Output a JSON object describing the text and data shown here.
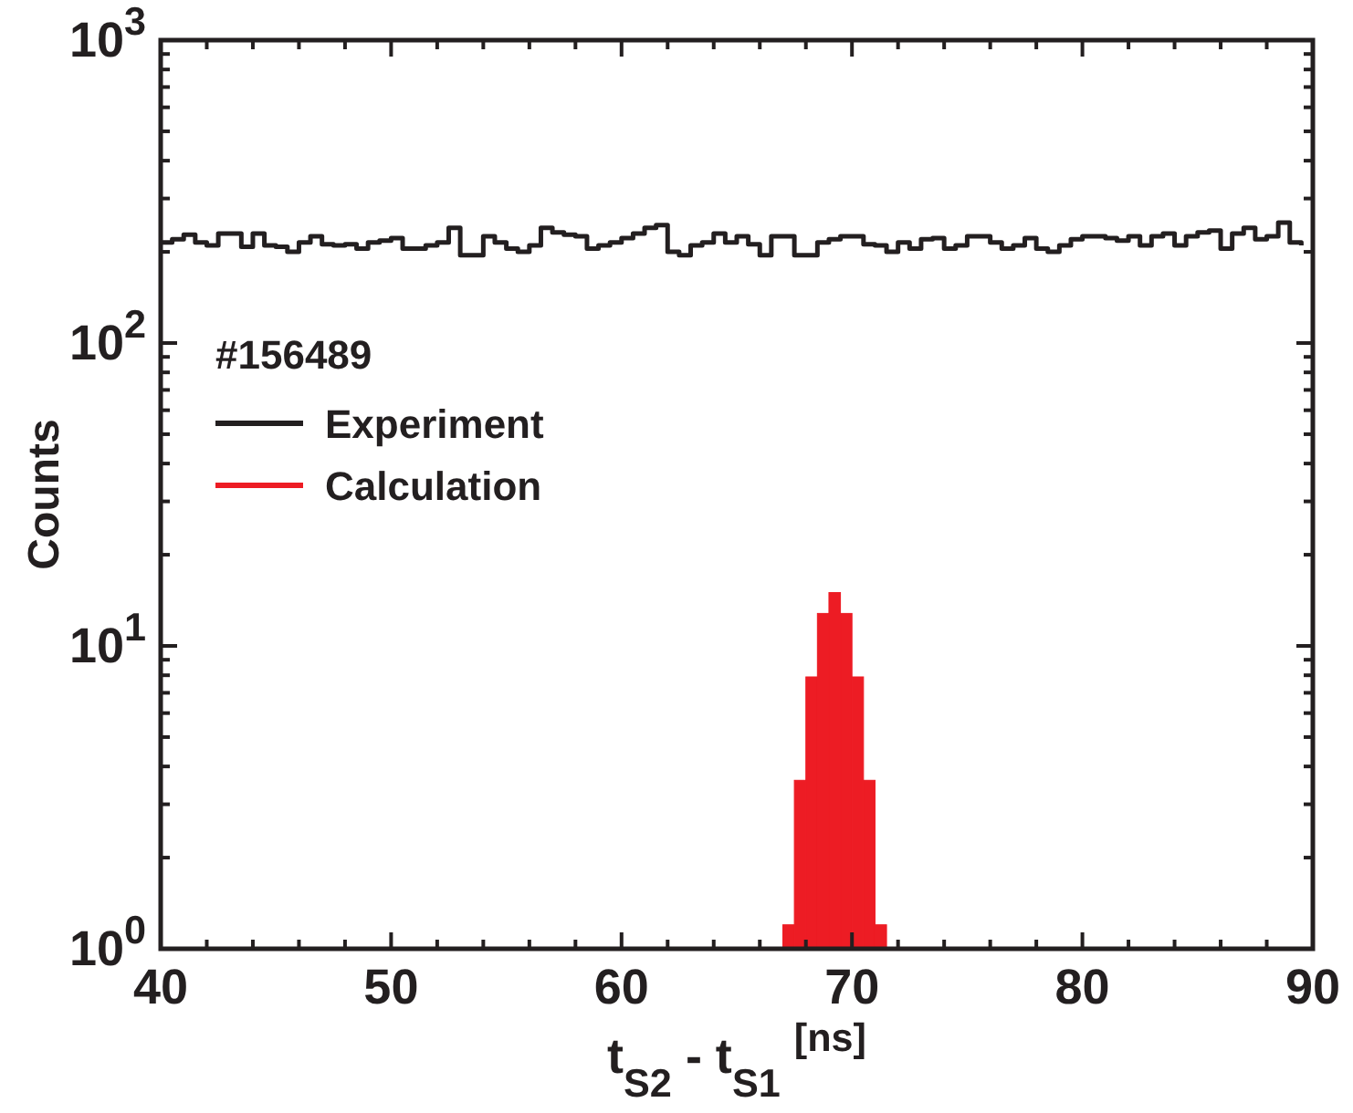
{
  "chart_data": {
    "type": "histogram",
    "xlabel": "t$_{S2}$ - t$_{S1}$ $^{[ns]}$",
    "ylabel": "Counts",
    "legend_title": "#156489",
    "legend": "top left",
    "log": "y",
    "bins": [
      40,
      40.5,
      41,
      41.5,
      42,
      42.5,
      43,
      43.5,
      44,
      44.5,
      45,
      45.5,
      46,
      46.5,
      47,
      47.5,
      48,
      48.5,
      49,
      49.5,
      50,
      50.5,
      51,
      51.5,
      52,
      52.5,
      53,
      53.5,
      54,
      54.5,
      55,
      55.5,
      56,
      56.5,
      57,
      57.5,
      58,
      58.5,
      59,
      59.5,
      60,
      60.5,
      61,
      61.5,
      62,
      62.5,
      63,
      63.5,
      64,
      64.5,
      65,
      65.5,
      66,
      66.5,
      67,
      67.5,
      68,
      68.5,
      69,
      69.5,
      70,
      70.5,
      71,
      71.5,
      72,
      72.5,
      73,
      73.5,
      74,
      74.5,
      75,
      75.5,
      76,
      76.5,
      77,
      77.5,
      78,
      78.5,
      79,
      79.5,
      80,
      80.5,
      81,
      81.5,
      82,
      82.5,
      83,
      83.5,
      84,
      84.5,
      85,
      85.5,
      86,
      86.5,
      87,
      87.5,
      88,
      88.5,
      89,
      89.5,
      90
    ],
    "series": [
      {
        "name": "Experiment",
        "type": "step",
        "color": "#231f20",
        "x": [
          40,
          40.5,
          41,
          41.5,
          42,
          42.5,
          43,
          43.5,
          44,
          44.5,
          45,
          45.5,
          46,
          46.5,
          47,
          47.5,
          48,
          48.5,
          49,
          49.5,
          50,
          50.5,
          51,
          51.5,
          52,
          52.5,
          53,
          53.5,
          54,
          54.5,
          55,
          55.5,
          56,
          56.5,
          57,
          57.5,
          58,
          58.5,
          59,
          59.5,
          60,
          60.5,
          61,
          61.5,
          62,
          62.5,
          63,
          63.5,
          64,
          64.5,
          65,
          65.5,
          66,
          66.5,
          67,
          67.5,
          68,
          68.5,
          69,
          69.5,
          70,
          70.5,
          71,
          71.5,
          72,
          72.5,
          73,
          73.5,
          74,
          74.5,
          75,
          75.5,
          76,
          76.5,
          77,
          77.5,
          78,
          78.5,
          79,
          79.5,
          80,
          80.5,
          81,
          81.5,
          82,
          82.5,
          83,
          83.5,
          84,
          84.5,
          85,
          85.5,
          86,
          86.5,
          87,
          87.5,
          88,
          88.5,
          89,
          89.5
        ],
        "values": [
          215,
          220,
          228,
          215,
          210,
          230,
          230,
          208,
          230,
          210,
          208,
          200,
          215,
          225,
          212,
          210,
          212,
          205,
          215,
          218,
          222,
          205,
          205,
          210,
          215,
          240,
          195,
          195,
          225,
          215,
          205,
          200,
          210,
          240,
          232,
          228,
          225,
          205,
          210,
          215,
          222,
          230,
          240,
          245,
          200,
          195,
          210,
          215,
          230,
          215,
          225,
          212,
          195,
          225,
          225,
          195,
          195,
          215,
          220,
          225,
          225,
          212,
          210,
          200,
          215,
          205,
          220,
          222,
          205,
          210,
          225,
          225,
          215,
          205,
          210,
          222,
          205,
          200,
          210,
          220,
          225,
          225,
          222,
          218,
          225,
          210,
          225,
          230,
          210,
          225,
          232,
          235,
          205,
          230,
          240,
          220,
          225,
          250,
          215,
          210
        ]
      },
      {
        "name": "Calculation",
        "color": "#ed1c24",
        "values": [
          1,
          1,
          1,
          1,
          1,
          1,
          1,
          1,
          1,
          1,
          1,
          1,
          1,
          1,
          1,
          1,
          1,
          1,
          1,
          1,
          1,
          1,
          1,
          1,
          1,
          1,
          1,
          1,
          1,
          1,
          1,
          1,
          1,
          1,
          1,
          1,
          1,
          1,
          1,
          1,
          1,
          1,
          1,
          1,
          1,
          1,
          1,
          1,
          1,
          1,
          1,
          1,
          1,
          1,
          1.2,
          3.6,
          7.9,
          12.8,
          15,
          12.8,
          7.9,
          3.6,
          1.2,
          1,
          1,
          1,
          1,
          1,
          1,
          1,
          1,
          1,
          1,
          1,
          1,
          1,
          1,
          1,
          1,
          1,
          1,
          1,
          1,
          1,
          1,
          1,
          1,
          1,
          1,
          1,
          1,
          1,
          1,
          1,
          1,
          1,
          1,
          1,
          1,
          1
        ]
      }
    ],
    "xlim": [
      40,
      90
    ],
    "xticks": [
      40,
      {
        "value": 42,
        "label": null
      },
      {
        "value": 44,
        "label": null
      },
      {
        "value": 46,
        "label": null
      },
      {
        "value": 48,
        "label": null
      },
      50,
      {
        "value": 52,
        "label": null
      },
      {
        "value": 54,
        "label": null
      },
      {
        "value": 56,
        "label": null
      },
      {
        "value": 58,
        "label": null
      },
      60,
      {
        "value": 62,
        "label": null
      },
      {
        "value": 64,
        "label": null
      },
      {
        "value": 66,
        "label": null
      },
      {
        "value": 68,
        "label": null
      },
      70,
      {
        "value": 72,
        "label": null
      },
      {
        "value": 74,
        "label": null
      },
      {
        "value": 76,
        "label": null
      },
      {
        "value": 78,
        "label": null
      },
      80,
      {
        "value": 82,
        "label": null
      },
      {
        "value": 84,
        "label": null
      },
      {
        "value": 86,
        "label": null
      },
      {
        "value": 88,
        "label": null
      },
      90
    ],
    "ylim": [
      1,
      1000
    ],
    "yticks": [
      {
        "value": 1,
        "label": "10$^{0}$"
      },
      {
        "value": 2,
        "label": null
      },
      {
        "value": 3,
        "label": null
      },
      {
        "value": 4,
        "label": null
      },
      {
        "value": 5,
        "label": null
      },
      {
        "value": 6,
        "label": null
      },
      {
        "value": 7,
        "label": null
      },
      {
        "value": 8,
        "label": null
      },
      {
        "value": 9,
        "label": null
      },
      {
        "value": 10,
        "label": "10$^{1}$"
      },
      {
        "value": 20,
        "label": null
      },
      {
        "value": 30,
        "label": null
      },
      {
        "value": 40,
        "label": null
      },
      {
        "value": 50,
        "label": null
      },
      {
        "value": 60,
        "label": null
      },
      {
        "value": 70,
        "label": null
      },
      {
        "value": 80,
        "label": null
      },
      {
        "value": 90,
        "label": null
      },
      {
        "value": 100,
        "label": "10$^{2}$"
      },
      {
        "value": 200,
        "label": null
      },
      {
        "value": 300,
        "label": null
      },
      {
        "value": 400,
        "label": null
      },
      {
        "value": 500,
        "label": null
      },
      {
        "value": 600,
        "label": null
      },
      {
        "value": 700,
        "label": null
      },
      {
        "value": 800,
        "label": null
      },
      {
        "value": 900,
        "label": null
      },
      {
        "value": 1000,
        "label": "10$^{3}$"
      }
    ]
  }
}
